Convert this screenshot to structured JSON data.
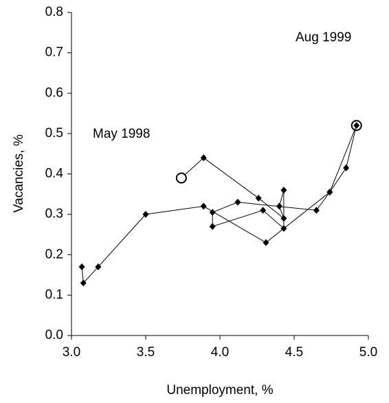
{
  "chart_data": {
    "type": "line",
    "x_label": "Unemployment, %",
    "y_label": "Vacancies, %",
    "annotations": [
      "May 1998",
      "Aug 1999"
    ],
    "series": [
      {
        "color": "#000000",
        "endpoints": "open-circle",
        "x": [
          3.74,
          3.89,
          4.26,
          4.43,
          4.4,
          4.43,
          4.43,
          4.29,
          3.95,
          3.95,
          4.12,
          4.65,
          4.74,
          4.85,
          4.92
        ],
        "values": [
          0.39,
          0.44,
          0.34,
          0.29,
          0.32,
          0.36,
          0.265,
          0.31,
          0.27,
          0.305,
          0.33,
          0.31,
          0.355,
          0.415,
          0.52
        ]
      },
      {
        "color": "#000000",
        "endpoints": "none",
        "x": [
          3.07,
          3.08,
          3.18,
          3.5,
          3.89,
          4.31,
          4.74,
          4.92
        ],
        "values": [
          0.17,
          0.13,
          0.17,
          0.3,
          0.32,
          0.23,
          0.355,
          0.52
        ]
      }
    ],
    "xlim": [
      3.0,
      5.0
    ],
    "xticks": [
      {
        "value": 3.0,
        "label": "3.0"
      },
      3.5,
      {
        "value": 4.0,
        "label": "4.0"
      },
      4.5,
      {
        "value": 5.0,
        "label": "5.0"
      }
    ],
    "ylim": [
      0.0,
      0.8
    ],
    "yticks": [
      {
        "value": 0.0,
        "label": "0.0"
      },
      0.1,
      0.2,
      0.3,
      0.4,
      0.5,
      0.6,
      0.7,
      0.8
    ]
  }
}
